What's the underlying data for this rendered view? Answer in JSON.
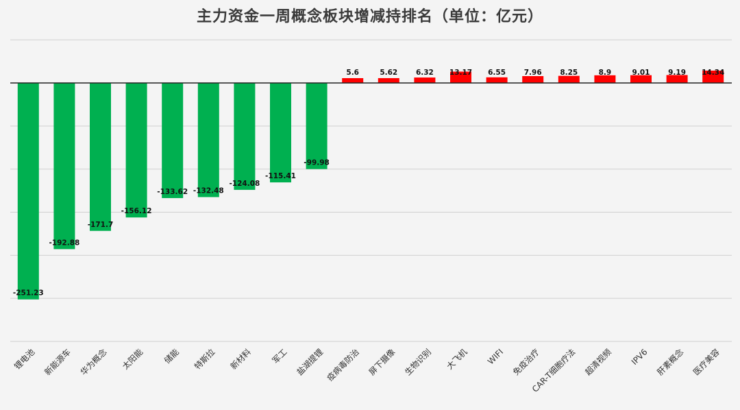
{
  "chart_data": {
    "type": "bar",
    "title": "主力资金一周概念板块增减持排名（单位：亿元）",
    "xlabel": "",
    "ylabel": "",
    "ylim": [
      -300,
      50
    ],
    "grid": true,
    "legend": "none",
    "categories": [
      "锂电池",
      "新能源车",
      "华为概念",
      "太阳能",
      "储能",
      "特斯拉",
      "新材料",
      "军工",
      "盐湖提锂",
      "疫病毒防治",
      "屏下摄像",
      "生物识别",
      "大飞机",
      "WIFI",
      "免疫治疗",
      "CAR-T细胞疗法",
      "超清视频",
      "IPV6",
      "肝素概念",
      "医疗美容"
    ],
    "values": [
      -251.23,
      -192.88,
      -171.7,
      -156.12,
      -133.62,
      -132.48,
      -124.08,
      -115.41,
      -99.98,
      5.6,
      5.62,
      6.32,
      13.17,
      6.55,
      7.96,
      8.25,
      8.9,
      9.01,
      9.19,
      14.34
    ],
    "value_labels": [
      "-251.23",
      "-192.88",
      "-171.7",
      "-156.12",
      "-133.62",
      "-132.48",
      "-124.08",
      "-115.41",
      "-99.98",
      "5.6",
      "5.62",
      "6.32",
      "13.17",
      "6.55",
      "7.96",
      "8.25",
      "8.9",
      "9.01",
      "9.19",
      "14.34"
    ],
    "colors": {
      "negative": "#00b050",
      "positive": "#ff0000",
      "grid": "#cfcfcf",
      "axis": "#222222"
    }
  }
}
